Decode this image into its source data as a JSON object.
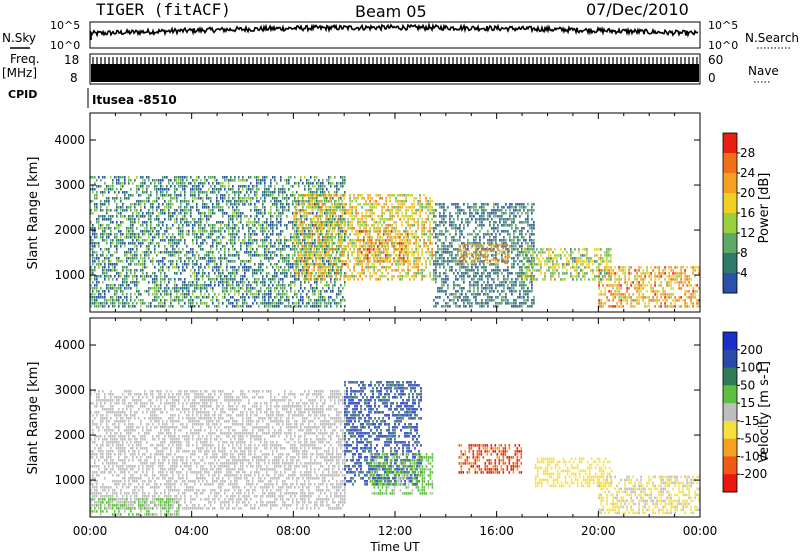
{
  "header": {
    "station": "TIGER (fitACF)",
    "beam": "Beam 05",
    "date": "07/Dec/2010"
  },
  "strip": {
    "nsky_label": "N.Sky",
    "nsky_ticks": [
      "10^5",
      "10^0"
    ],
    "nsearch_label": "N.Search",
    "nsearch_ticks": [
      "10^5",
      "10^0"
    ],
    "freq_label_1": "Freq.",
    "freq_label_2": "[MHz]",
    "freq_ticks": [
      "18",
      "8"
    ],
    "nave_label": "Nave",
    "nave_ticks": [
      "60",
      "0"
    ],
    "cpid_label": "CPID",
    "cpid_value": "Itusea -8510"
  },
  "colors": {
    "power": [
      "#1f2fd8",
      "#2952a8",
      "#2e7b6a",
      "#60a868",
      "#9ad040",
      "#f0d020",
      "#f5a020",
      "#f07018",
      "#e82010"
    ],
    "velocity": [
      "#1a2fc8",
      "#2a4aa8",
      "#2e7b5a",
      "#5cc03c",
      "#bebebe",
      "#f7e03c",
      "#f5a020",
      "#f05a14",
      "#e81a10"
    ]
  },
  "chart_data": [
    {
      "type": "heatmap",
      "name": "power",
      "ylabel": "Slant Range [km]",
      "xlabel": "",
      "ylim": [
        180,
        4600
      ],
      "xlim": [
        0,
        24
      ],
      "yticks": [
        "4000",
        "3000",
        "2000",
        "1000"
      ],
      "ytick_values": [
        4000,
        3000,
        2000,
        1000
      ],
      "colorbar_label": "Power [dB]",
      "colorbar_ticks": [
        "28",
        "24",
        "20",
        "16",
        "12",
        "8",
        "4"
      ],
      "colorbar_range": [
        0,
        32
      ],
      "regions": [
        {
          "t0": 0.0,
          "t1": 10.0,
          "r0": 300,
          "r1": 3200,
          "v0": 4,
          "v1": 16
        },
        {
          "t0": 8.0,
          "t1": 13.5,
          "r0": 900,
          "r1": 2800,
          "v0": 12,
          "v1": 26
        },
        {
          "t0": 10.5,
          "t1": 12.5,
          "r0": 1300,
          "r1": 2000,
          "v0": 18,
          "v1": 30
        },
        {
          "t0": 13.5,
          "t1": 17.5,
          "r0": 300,
          "r1": 2600,
          "v0": 4,
          "v1": 14
        },
        {
          "t0": 14.5,
          "t1": 16.5,
          "r0": 1300,
          "r1": 1700,
          "v0": 18,
          "v1": 28
        },
        {
          "t0": 17.0,
          "t1": 20.5,
          "r0": 900,
          "r1": 1600,
          "v0": 10,
          "v1": 22
        },
        {
          "t0": 20.0,
          "t1": 24.0,
          "r0": 300,
          "r1": 1200,
          "v0": 16,
          "v1": 30
        }
      ]
    },
    {
      "type": "heatmap",
      "name": "velocity",
      "ylabel": "Slant Range [km]",
      "xlabel": "Time UT",
      "ylim": [
        180,
        4600
      ],
      "xlim": [
        0,
        24
      ],
      "yticks": [
        "4000",
        "3000",
        "2000",
        "1000"
      ],
      "ytick_values": [
        4000,
        3000,
        2000,
        1000
      ],
      "xticks": [
        "00:00",
        "04:00",
        "08:00",
        "12:00",
        "16:00",
        "20:00",
        "00:00"
      ],
      "xtick_values": [
        0,
        4,
        8,
        12,
        16,
        20,
        24
      ],
      "colorbar_label": "Velocity [m s-1]",
      "colorbar_ticks": [
        "200",
        "100",
        "50",
        "15",
        "-15",
        "-50",
        "-100",
        "-200"
      ],
      "colorbar_range": [
        -250,
        250
      ],
      "regions": [
        {
          "t0": 0.0,
          "t1": 10.0,
          "r0": 400,
          "r1": 3000,
          "v0": -15,
          "v1": 15
        },
        {
          "t0": 0.0,
          "t1": 3.5,
          "r0": 250,
          "r1": 600,
          "v0": 15,
          "v1": 50
        },
        {
          "t0": 10.0,
          "t1": 13.0,
          "r0": 900,
          "r1": 3200,
          "v0": 100,
          "v1": 250
        },
        {
          "t0": 11.0,
          "t1": 13.5,
          "r0": 700,
          "r1": 1600,
          "v0": 15,
          "v1": 60
        },
        {
          "t0": 14.5,
          "t1": 17.0,
          "r0": 1200,
          "r1": 1800,
          "v0": -250,
          "v1": -100
        },
        {
          "t0": 17.5,
          "t1": 20.5,
          "r0": 900,
          "r1": 1500,
          "v0": -80,
          "v1": -40
        },
        {
          "t0": 20.0,
          "t1": 24.0,
          "r0": 300,
          "r1": 1100,
          "v0": -50,
          "v1": -15
        }
      ]
    }
  ]
}
